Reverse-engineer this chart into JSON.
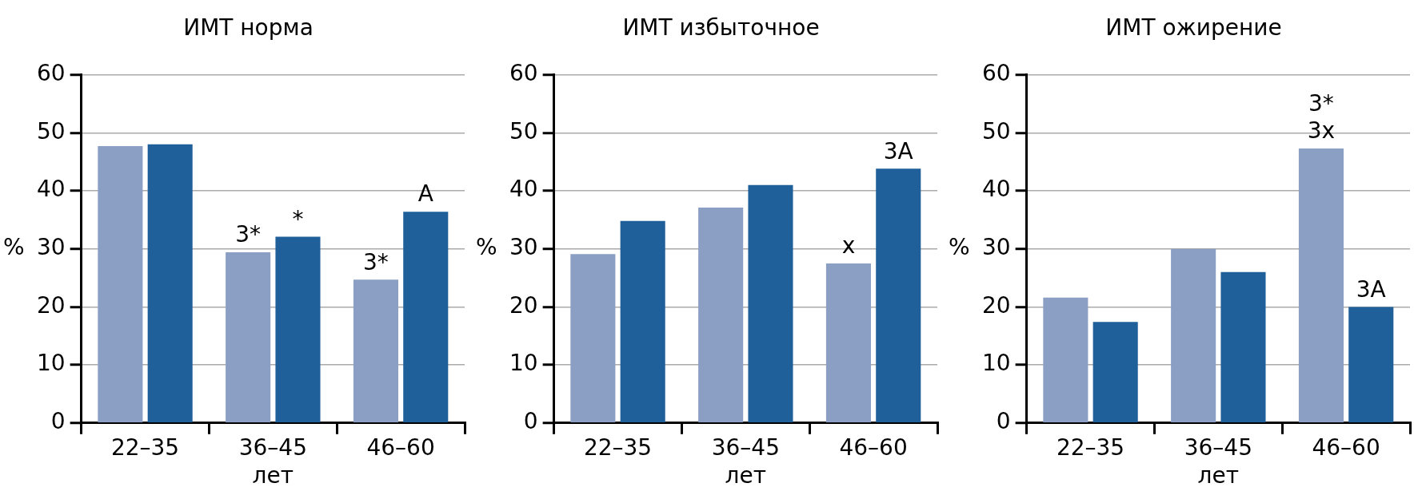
{
  "chart_data": [
    {
      "type": "bar",
      "title": "ИМТ норма",
      "xlabel": "лет",
      "ylabel": "%",
      "categories": [
        "22–35",
        "36–45",
        "46–60"
      ],
      "ylim": [
        0,
        60
      ],
      "yticks": [
        0,
        10,
        20,
        30,
        40,
        50,
        60
      ],
      "grid": "y",
      "series": [
        {
          "color": "#8b9fc4",
          "values": [
            47.7,
            29.4,
            24.7
          ]
        },
        {
          "color": "#1f5f9a",
          "values": [
            48.0,
            32.1,
            36.4
          ]
        }
      ],
      "annotations": [
        {
          "text": "3*",
          "x": "36–45",
          "y": 29.4
        },
        {
          "text": "*",
          "x": "36–45",
          "y": 32.1
        },
        {
          "text": "3*",
          "x": "46–60",
          "y": 24.7
        },
        {
          "text": "A",
          "x": "46–60",
          "y": 36.4
        }
      ]
    },
    {
      "type": "bar",
      "title": "ИМТ избыточное",
      "xlabel": "лет",
      "ylabel": "%",
      "categories": [
        "22–35",
        "36–45",
        "46–60"
      ],
      "ylim": [
        0,
        60
      ],
      "yticks": [
        0,
        10,
        20,
        30,
        40,
        50,
        60
      ],
      "grid": "y",
      "series": [
        {
          "color": "#8b9fc4",
          "values": [
            29.1,
            37.1,
            27.5
          ]
        },
        {
          "color": "#1f5f9a",
          "values": [
            34.8,
            41.0,
            43.8
          ]
        }
      ],
      "annotations": [
        {
          "text": "x",
          "x": "46–60",
          "y": 27.5
        },
        {
          "text": "3A",
          "x": "46–60",
          "y": 43.8
        }
      ]
    },
    {
      "type": "bar",
      "title": "ИМТ ожирение",
      "xlabel": "лет",
      "ylabel": "%",
      "categories": [
        "22–35",
        "36–45",
        "46–60"
      ],
      "ylim": [
        0,
        60
      ],
      "yticks": [
        0,
        10,
        20,
        30,
        40,
        50,
        60
      ],
      "grid": "y",
      "series": [
        {
          "color": "#8b9fc4",
          "values": [
            21.6,
            30.0,
            47.3
          ]
        },
        {
          "color": "#1f5f9a",
          "values": [
            17.4,
            26.0,
            20.0
          ]
        }
      ],
      "annotations": [
        {
          "text": "3x",
          "x": "46–60",
          "y": 47.3
        },
        {
          "text": "3*",
          "x": "46–60",
          "y": 47.3
        },
        {
          "text": "3A",
          "x": "46–60",
          "y": 20.0
        }
      ]
    }
  ]
}
